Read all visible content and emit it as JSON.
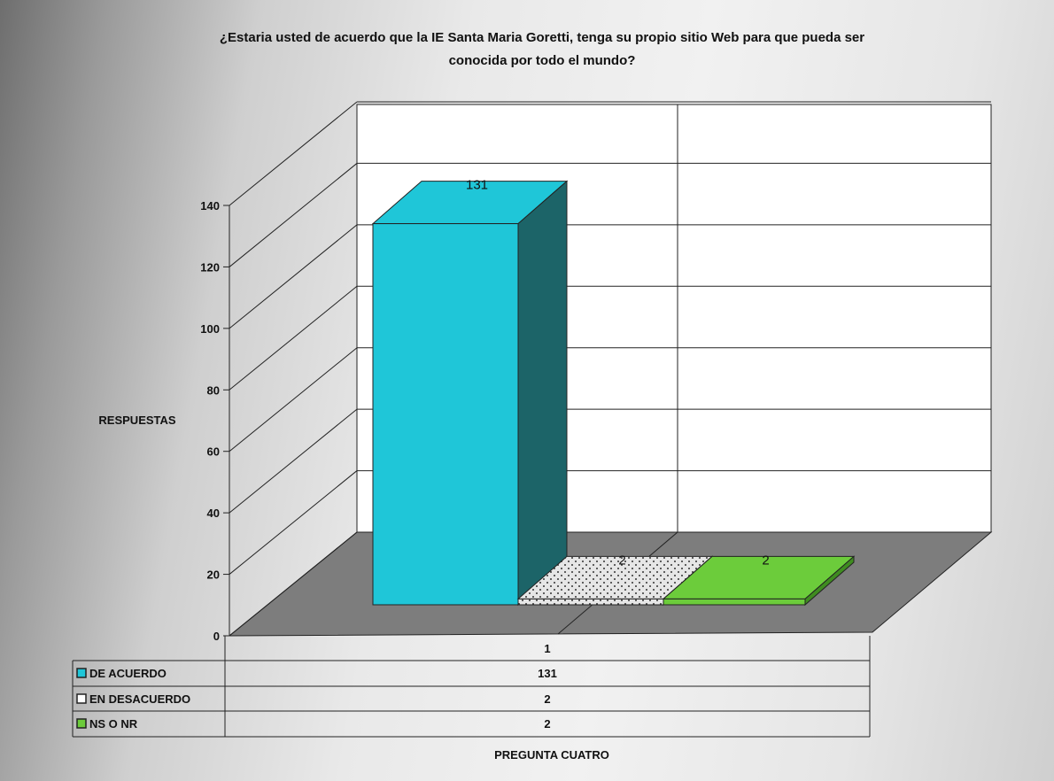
{
  "chart_data": {
    "type": "bar",
    "title": "¿Estaria usted de acuerdo que la IE Santa Maria Goretti, tenga su propio sitio Web para que pueda ser conocida por todo el mundo?",
    "title_lines": [
      "¿Estaria usted de acuerdo que la IE Santa Maria Goretti, tenga su propio sitio Web para que pueda ser",
      "conocida por todo el mundo?"
    ],
    "xlabel": "PREGUNTA CUATRO",
    "ylabel": "RESPUESTAS",
    "categories": [
      "1"
    ],
    "ylim": [
      0,
      140
    ],
    "yticks": [
      0,
      20,
      40,
      60,
      80,
      100,
      120,
      140
    ],
    "series": [
      {
        "name": "DE ACUERDO",
        "values": [
          131
        ],
        "color": "#1fc6d8",
        "side_color": "#1c6468",
        "pattern": "solid"
      },
      {
        "name": "EN DESACUERDO",
        "values": [
          2
        ],
        "color": "#e4e4e4",
        "side_color": "#bdbdbd",
        "pattern": "dotted"
      },
      {
        "name": "NS O NR",
        "values": [
          2
        ],
        "color": "#6ccc3b",
        "side_color": "#3f8c20",
        "pattern": "solid"
      }
    ],
    "data_table": true,
    "grid": true,
    "three_d": true
  }
}
